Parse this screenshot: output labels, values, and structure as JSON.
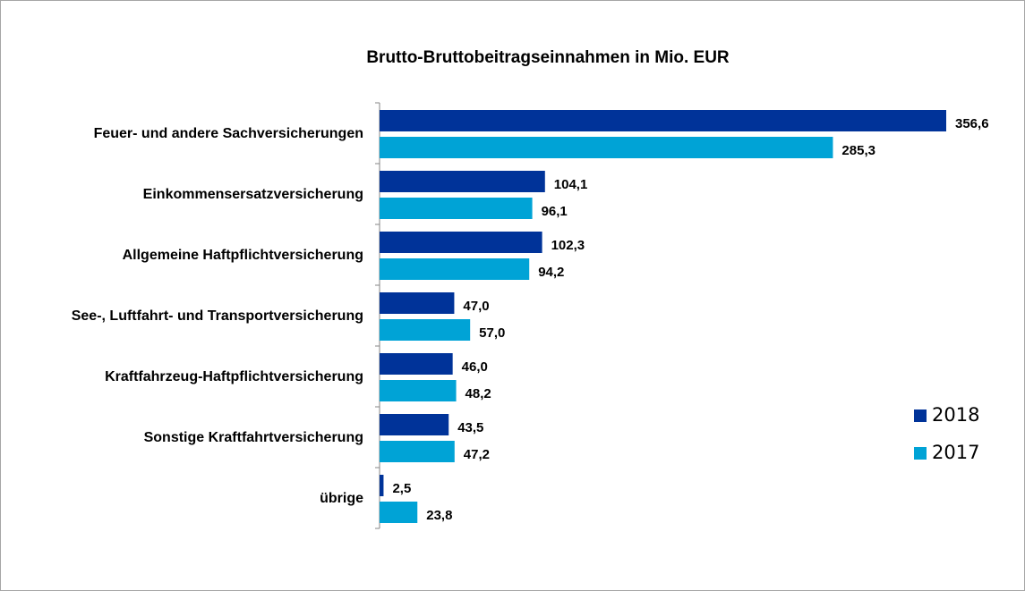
{
  "chart_data": {
    "type": "barh",
    "title": "Brutto-Bruttobeitragseinnahmen in Mio. EUR",
    "categories": [
      "Feuer- und andere Sachversicherungen",
      "Einkommensersatzversicherung",
      "Allgemeine Haftpflichtversicherung",
      "See-, Luftfahrt- und Transportversicherung",
      "Kraftfahrzeug-Haftpflichtversicherung",
      "Sonstige Kraftfahrtversicherung",
      "übrige"
    ],
    "series": [
      {
        "name": "2018",
        "color": "#003399",
        "values": [
          356.6,
          104.1,
          102.3,
          47.0,
          46.0,
          43.5,
          2.5
        ],
        "value_labels": [
          "356,6",
          "104,1",
          "102,3",
          "47,0",
          "46,0",
          "43,5",
          "2,5"
        ]
      },
      {
        "name": "2017",
        "color": "#00a3d6",
        "values": [
          285.3,
          96.1,
          94.2,
          57.0,
          48.2,
          47.2,
          23.8
        ],
        "value_labels": [
          "285,3",
          "96,1",
          "94,2",
          "57,0",
          "48,2",
          "47,2",
          "23,8"
        ]
      }
    ],
    "legend": "right"
  }
}
